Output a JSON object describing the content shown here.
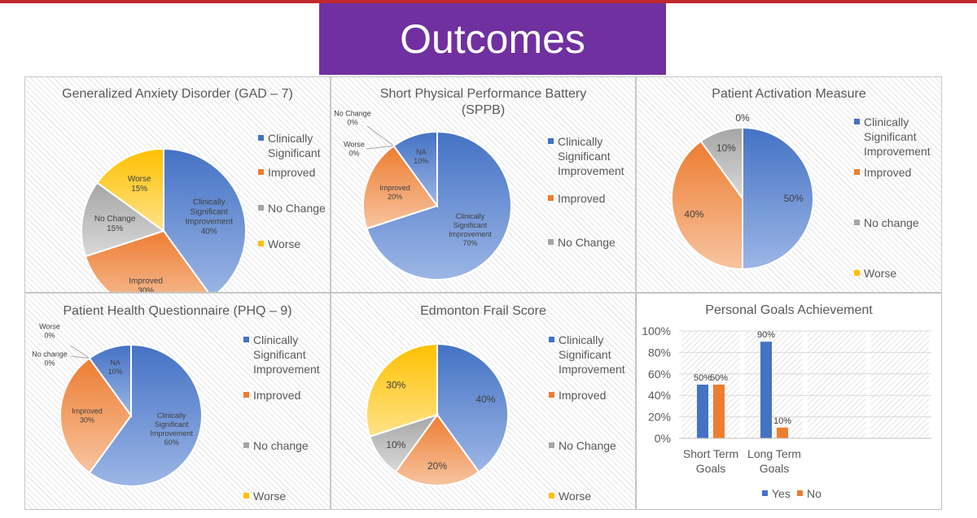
{
  "header": {
    "title": "Outcomes"
  },
  "colors": {
    "blue": "#4472c4",
    "orange": "#ed7d31",
    "gray": "#a5a5a5",
    "yellow": "#ffc000",
    "banner": "#7030a0",
    "rule": "#c0282e"
  },
  "chart_data": [
    {
      "id": "gad7",
      "type": "pie",
      "title": "Generalized Anxiety Disorder (GAD – 7)",
      "slices": [
        {
          "name": "Clinically Significant Improvement",
          "value": 40,
          "label": "Clinically\nSignificant\nImprovement\n40%",
          "color": "blue"
        },
        {
          "name": "Improved",
          "value": 30,
          "label": "Improved\n30%",
          "color": "orange"
        },
        {
          "name": "No Change",
          "value": 15,
          "label": "No Change\n15%",
          "color": "gray"
        },
        {
          "name": "Worse",
          "value": 15,
          "label": "Worse\n15%",
          "color": "yellow"
        }
      ],
      "legend": [
        {
          "text": "Clinically\nSignificant",
          "color": "blue"
        },
        {
          "text": "Improved",
          "color": "orange"
        },
        {
          "text": "No Change",
          "color": "gray"
        },
        {
          "text": "Worse",
          "color": "yellow"
        }
      ]
    },
    {
      "id": "sppb",
      "type": "pie",
      "title": "Short Physical Performance Battery\n(SPPB)",
      "slices": [
        {
          "name": "Clinically Significant Improvement",
          "value": 70,
          "label": "Clinically\nSignificant\nImprovement\n70%",
          "color": "blue"
        },
        {
          "name": "Improved",
          "value": 20,
          "label": "Improved\n20%",
          "color": "orange"
        },
        {
          "name": "Worse",
          "value": 0,
          "label": "Worse\n0%",
          "color": "yellow"
        },
        {
          "name": "No Change",
          "value": 0,
          "label": "No Change\n0%",
          "color": "gray"
        },
        {
          "name": "NA",
          "value": 10,
          "label": "NA\n10%",
          "color": "blue"
        }
      ],
      "legend": [
        {
          "text": "Clinically\nSignificant\nImprovement",
          "color": "blue"
        },
        {
          "text": "Improved",
          "color": "orange"
        },
        {
          "text": "No Change",
          "color": "gray"
        }
      ]
    },
    {
      "id": "pam",
      "type": "pie",
      "title": "Patient Activation Measure",
      "slices": [
        {
          "name": "Clinically Significant Improvement",
          "value": 50,
          "label": "50%",
          "color": "blue"
        },
        {
          "name": "Improved",
          "value": 40,
          "label": "40%",
          "color": "orange"
        },
        {
          "name": "No change",
          "value": 10,
          "label": "10%",
          "color": "gray"
        },
        {
          "name": "Worse",
          "value": 0,
          "label": "0%",
          "color": "yellow"
        }
      ],
      "legend": [
        {
          "text": "Clinically\nSignificant\nImprovement",
          "color": "blue"
        },
        {
          "text": "Improved",
          "color": "orange"
        },
        {
          "text": "No change",
          "color": "gray"
        },
        {
          "text": "Worse",
          "color": "yellow"
        }
      ]
    },
    {
      "id": "phq9",
      "type": "pie",
      "title": "Patient Health Questionnaire (PHQ – 9)",
      "slices": [
        {
          "name": "Clinically Significant Improvement",
          "value": 60,
          "label": "Clinically\nSignificant\nImprovement\n60%",
          "color": "blue"
        },
        {
          "name": "Improved",
          "value": 30,
          "label": "Improved\n30%",
          "color": "orange"
        },
        {
          "name": "No change",
          "value": 0,
          "label": "No change\n0%",
          "color": "gray"
        },
        {
          "name": "Worse",
          "value": 0,
          "label": "Worse\n0%",
          "color": "yellow"
        },
        {
          "name": "NA",
          "value": 10,
          "label": "NA\n10%",
          "color": "blue"
        }
      ],
      "legend": [
        {
          "text": "Clinically\nSignificant\nImprovement",
          "color": "blue"
        },
        {
          "text": "Improved",
          "color": "orange"
        },
        {
          "text": "No change",
          "color": "gray"
        },
        {
          "text": "Worse",
          "color": "yellow"
        }
      ]
    },
    {
      "id": "efs",
      "type": "pie",
      "title": "Edmonton Frail Score",
      "slices": [
        {
          "name": "Clinically Significant Improvement",
          "value": 40,
          "label": "40%",
          "color": "blue"
        },
        {
          "name": "Improved",
          "value": 20,
          "label": "20%",
          "color": "orange"
        },
        {
          "name": "No Change",
          "value": 10,
          "label": "10%",
          "color": "gray"
        },
        {
          "name": "Worse",
          "value": 30,
          "label": "30%",
          "color": "yellow"
        }
      ],
      "legend": [
        {
          "text": "Clinically\nSignificant\nImprovement",
          "color": "blue"
        },
        {
          "text": "Improved",
          "color": "orange"
        },
        {
          "text": "No Change",
          "color": "gray"
        },
        {
          "text": "Worse",
          "color": "yellow"
        }
      ]
    },
    {
      "id": "goals",
      "type": "bar",
      "title": "Personal Goals Achievement",
      "categories": [
        "Short Term\nGoals",
        "Long Term\nGoals"
      ],
      "series": [
        {
          "name": "Yes",
          "values": [
            50,
            90
          ],
          "labels": [
            "50%",
            "90%"
          ],
          "color": "blue"
        },
        {
          "name": "No",
          "values": [
            50,
            10
          ],
          "labels": [
            "50%",
            "10%"
          ],
          "color": "orange"
        }
      ],
      "ylim": [
        0,
        100
      ],
      "yticks": [
        "0%",
        "20%",
        "40%",
        "60%",
        "80%",
        "100%"
      ],
      "legend": [
        {
          "text": "Yes",
          "color": "blue"
        },
        {
          "text": "No",
          "color": "orange"
        }
      ]
    }
  ]
}
